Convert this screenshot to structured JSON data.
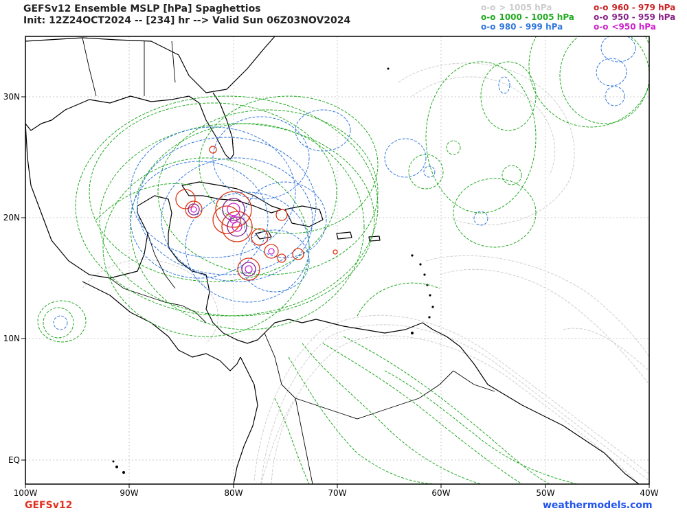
{
  "title": {
    "line1": "GEFSv12 Ensemble MSLP [hPa] Spaghettios",
    "line2": "Init: 12Z24OCT2024 -- [234] hr --> Valid Sun 06Z03NOV2024"
  },
  "legend": {
    "marker": "o-o",
    "left": [
      {
        "label": "> 1005 hPa",
        "color": "#cccccc"
      },
      {
        "label": "1000 - 1005 hPa",
        "color": "#22aa22"
      },
      {
        "label": "980 - 999 hPa",
        "color": "#3377dd"
      }
    ],
    "right": [
      {
        "label": "960 - 979 hPa",
        "color": "#cc2222"
      },
      {
        "label": "950 - 959 hPa",
        "color": "#882288"
      },
      {
        "label": "<950 hPa",
        "color": "#cc22cc"
      }
    ]
  },
  "axes": {
    "lon_labels": [
      "100W",
      "90W",
      "80W",
      "70W",
      "60W",
      "50W",
      "40W"
    ],
    "lat_labels": [
      "30N",
      "20N",
      "10N",
      "EQ"
    ]
  },
  "footer": {
    "left": "GEFSv12",
    "left_color": "#e03020",
    "right": "weathermodels.com",
    "right_color": "#2255ee"
  }
}
